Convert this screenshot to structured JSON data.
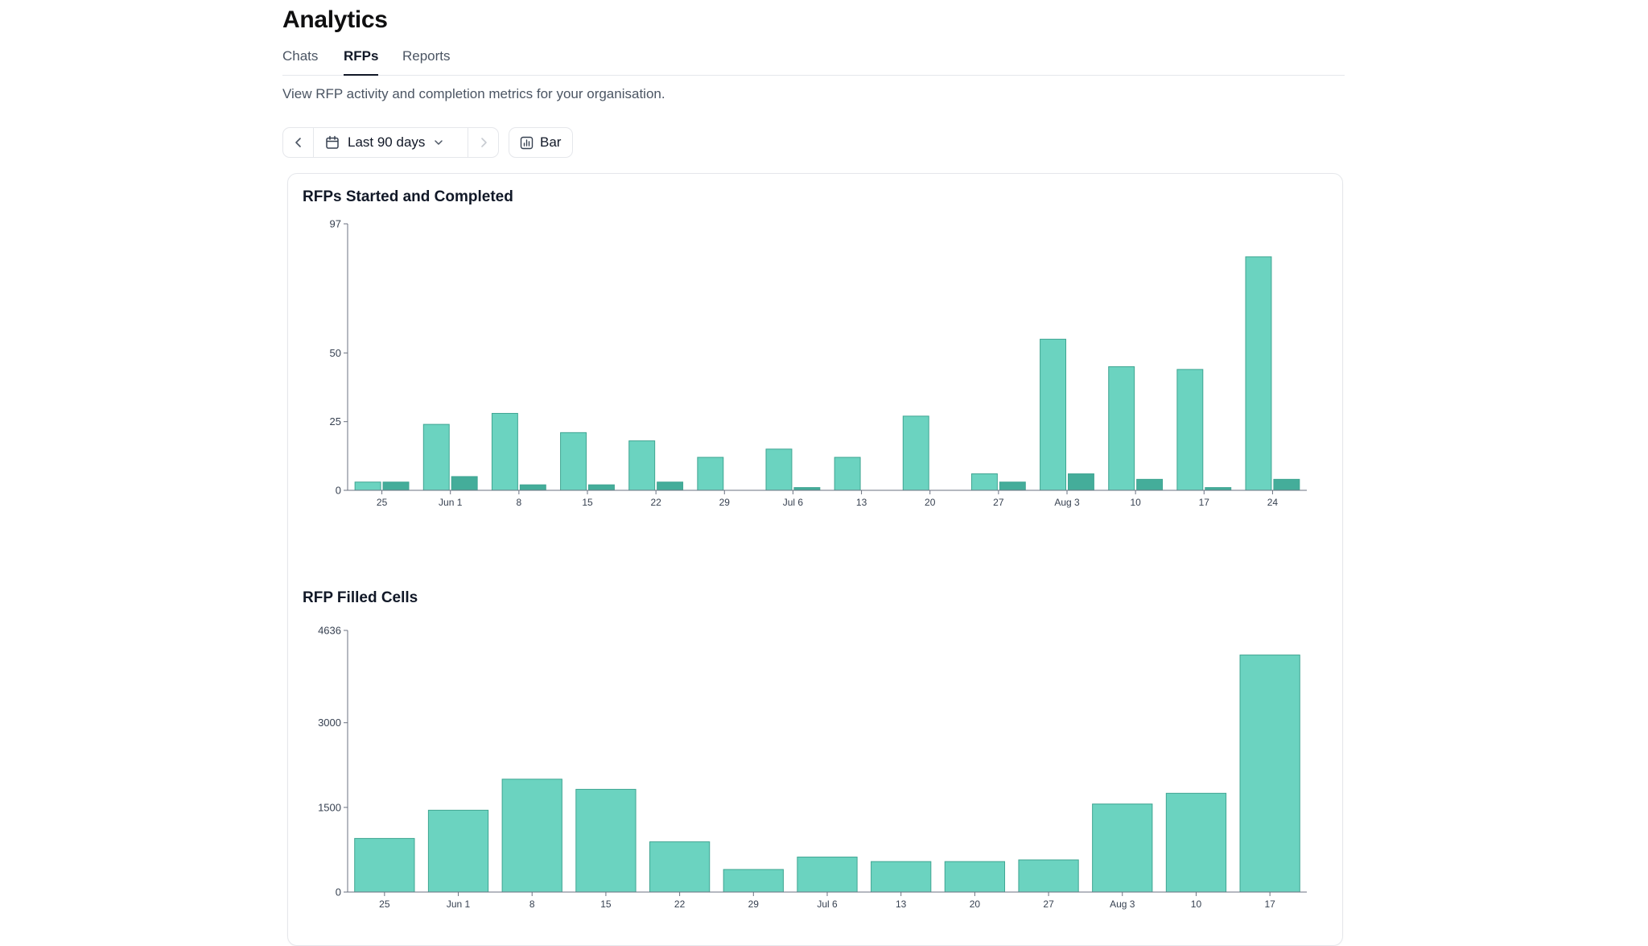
{
  "header": {
    "title": "Analytics"
  },
  "tabs": [
    {
      "label": "Chats",
      "active": false
    },
    {
      "label": "RFPs",
      "active": true
    },
    {
      "label": "Reports",
      "active": false
    }
  ],
  "description": "View RFP activity and completion metrics for your organisation.",
  "toolbar": {
    "range_label": "Last 90 days",
    "chart_type_label": "Bar",
    "icons": [
      "chevron-left-icon",
      "calendar-icon",
      "chevron-down-icon",
      "chevron-right-icon",
      "bar-chart-icon"
    ]
  },
  "colors": {
    "started": "#6bd3c0",
    "completed": "#44ad9a",
    "bar_stroke": "#3fa592",
    "axis": "#6b7280"
  },
  "chart_data": [
    {
      "type": "bar",
      "title": "RFPs Started and Completed",
      "categories": [
        "25",
        "Jun 1",
        "8",
        "15",
        "22",
        "29",
        "Jul 6",
        "13",
        "20",
        "27",
        "Aug 3",
        "10",
        "17",
        "24"
      ],
      "series": [
        {
          "values": [
            3,
            24,
            28,
            21,
            18,
            12,
            15,
            12,
            27,
            6,
            55,
            45,
            44,
            85
          ]
        },
        {
          "values": [
            3,
            5,
            2,
            2,
            3,
            0,
            1,
            0,
            0,
            3,
            6,
            4,
            1,
            4
          ]
        }
      ],
      "yticks": [
        0,
        25,
        50,
        97
      ],
      "ylim": [
        0,
        97
      ],
      "grid": false,
      "xlabel": "",
      "ylabel": ""
    },
    {
      "type": "bar",
      "title": "RFP Filled Cells",
      "categories": [
        "25",
        "Jun 1",
        "8",
        "15",
        "22",
        "29",
        "Jul 6",
        "13",
        "20",
        "27",
        "Aug 3",
        "10",
        "17"
      ],
      "series": [
        {
          "values": [
            950,
            1450,
            2000,
            1820,
            890,
            400,
            620,
            540,
            540,
            570,
            1560,
            1750,
            4200
          ]
        }
      ],
      "yticks": [
        0,
        1500,
        3000,
        4636
      ],
      "ylim": [
        0,
        4636
      ],
      "grid": false,
      "xlabel": "",
      "ylabel": ""
    }
  ]
}
